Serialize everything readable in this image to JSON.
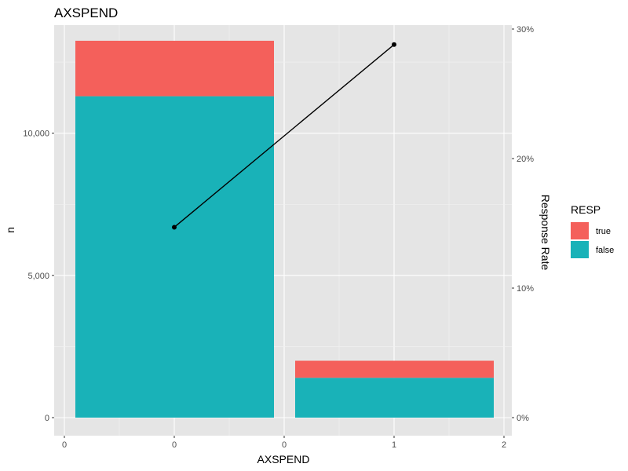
{
  "chart_data": {
    "type": "bar",
    "title": "AXSPEND",
    "xlabel": "AXSPEND",
    "ylabel": "n",
    "y2label": "Response Rate",
    "x_tick_labels": [
      "0",
      "0",
      "0",
      "1",
      "1",
      "2"
    ],
    "categories": [
      "0",
      "1"
    ],
    "series": [
      {
        "name": "false",
        "values": [
          11300,
          1400
        ],
        "color": "#19b2b8"
      },
      {
        "name": "true",
        "values": [
          1950,
          600
        ],
        "color": "#f4605b"
      }
    ],
    "line": {
      "name": "Response Rate",
      "values": [
        14.7,
        28.8
      ],
      "color": "#000000"
    },
    "ylim": [
      0,
      13800
    ],
    "y_ticks": [
      0,
      5000,
      10000
    ],
    "y_tick_labels": [
      "0",
      "5,000",
      "10,000"
    ],
    "y2lim": [
      0,
      30
    ],
    "y2_ticks": [
      0,
      10,
      20,
      30
    ],
    "y2_tick_labels": [
      "0%",
      "10%",
      "20%",
      "30%"
    ],
    "legend": {
      "title": "RESP",
      "placement": "right",
      "entries": [
        {
          "label": "true",
          "color": "#f4605b"
        },
        {
          "label": "false",
          "color": "#19b2b8"
        }
      ]
    },
    "grid": true,
    "panel_background": "#e5e5e5"
  }
}
